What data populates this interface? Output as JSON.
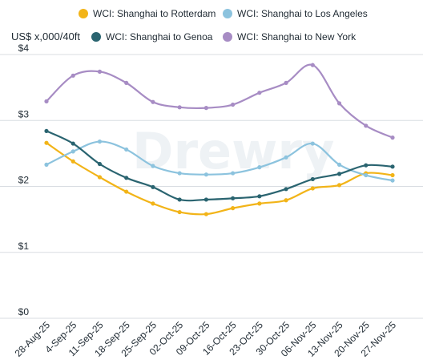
{
  "chart_data": {
    "type": "line",
    "unit_label": "US$ x,000/40ft",
    "watermark": "Drewry",
    "x": [
      "28-Aug-25",
      "4-Sep-25",
      "11-Sep-25",
      "18-Sep-25",
      "25-Sep-25",
      "02-Oct-25",
      "09-Oct-25",
      "16-Oct-25",
      "23-Oct-25",
      "30-Oct-25",
      "06-Nov-25",
      "13-Nov-25",
      "20-Nov-25",
      "27-Nov-25"
    ],
    "y_ticks": [
      {
        "value": 0,
        "label": "$0"
      },
      {
        "value": 1,
        "label": "$1"
      },
      {
        "value": 2,
        "label": "$2"
      },
      {
        "value": 3,
        "label": "$3"
      },
      {
        "value": 4,
        "label": "$4"
      }
    ],
    "ylim": [
      0,
      4
    ],
    "grid": true,
    "legend_position": "top",
    "series": [
      {
        "name": "WCI: Shanghai to Rotterdam",
        "color": "#f2b418",
        "values": [
          2.66,
          2.38,
          2.14,
          1.92,
          1.74,
          1.61,
          1.58,
          1.67,
          1.74,
          1.79,
          1.97,
          2.02,
          2.2,
          2.17
        ]
      },
      {
        "name": "WCI: Shanghai to Los Angeles",
        "color": "#8cc3de",
        "values": [
          2.33,
          2.53,
          2.68,
          2.56,
          2.31,
          2.2,
          2.18,
          2.2,
          2.29,
          2.44,
          2.65,
          2.33,
          2.17,
          2.09
        ]
      },
      {
        "name": "WCI: Shanghai to Genoa",
        "color": "#2a6470",
        "values": [
          2.84,
          2.65,
          2.34,
          2.13,
          1.99,
          1.8,
          1.8,
          1.82,
          1.85,
          1.96,
          2.11,
          2.19,
          2.32,
          2.3
        ]
      },
      {
        "name": "WCI: Shanghai to New York",
        "color": "#a78cc4",
        "values": [
          3.29,
          3.68,
          3.74,
          3.57,
          3.28,
          3.2,
          3.19,
          3.24,
          3.42,
          3.57,
          3.84,
          3.26,
          2.92,
          2.74
        ]
      }
    ]
  }
}
